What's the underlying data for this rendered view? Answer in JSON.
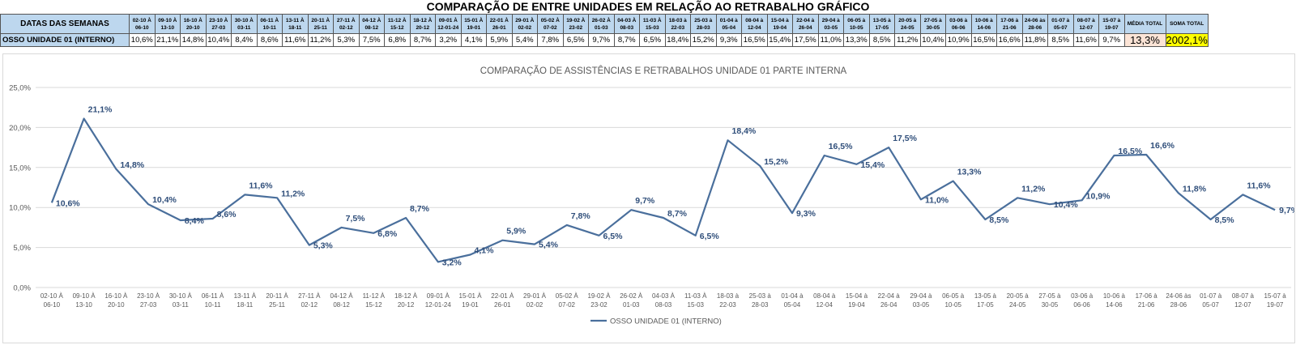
{
  "page_title": "COMPARAÇÃO DE ENTRE UNIDADES EM RELAÇÃO AO RETRABALHO GRÁFICO",
  "table": {
    "header_label": "DATAS DAS SEMANAS",
    "row_label": "OSSO UNIDADE 01 (INTERNO)",
    "weeks": [
      "02-10 À 06-10",
      "09-10 À 13-10",
      "16-10 À 20-10",
      "23-10 À 27-03",
      "30-10 À 03-11",
      "06-11 À 10-11",
      "13-11 À 18-11",
      "20-11 À 25-11",
      "27-11 À 02-12",
      "04-12 À 08-12",
      "11-12 À 15-12",
      "18-12 À 20-12",
      "09-01 À 12-01-24",
      "15-01 À 19-01",
      "22-01 À 26-01",
      "29-01 À 02-02",
      "05-02 À 07-02",
      "19-02 À 23-02",
      "26-02 À 01-03",
      "04-03 À 08-03",
      "11-03 À 15-03",
      "18-03 à 22-03",
      "25-03 à 28-03",
      "01-04 à 05-04",
      "08-04 à 12-04",
      "15-04 à 19-04",
      "22-04 à 26-04",
      "29-04 à 03-05",
      "06-05 à 10-05",
      "13-05 à 17-05",
      "20-05 à 24-05",
      "27-05 à 30-05",
      "03-06 à 06-06",
      "10-06 à 14-06",
      "17-06 à 21-06",
      "24-06 às 28-06",
      "01-07 à 05-07",
      "08-07 à 12-07",
      "15-07 à 19-07"
    ],
    "values": [
      "10,6%",
      "21,1%",
      "14,8%",
      "10,4%",
      "8,4%",
      "8,6%",
      "11,6%",
      "11,2%",
      "5,3%",
      "7,5%",
      "6,8%",
      "8,7%",
      "3,2%",
      "4,1%",
      "5,9%",
      "5,4%",
      "7,8%",
      "6,5%",
      "9,7%",
      "8,7%",
      "6,5%",
      "18,4%",
      "15,2%",
      "9,3%",
      "16,5%",
      "15,4%",
      "17,5%",
      "11,0%",
      "13,3%",
      "8,5%",
      "11,2%",
      "10,4%",
      "10,9%",
      "16,5%",
      "16,6%",
      "11,8%",
      "8,5%",
      "11,6%",
      "9,7%"
    ],
    "media_label": "MÉDIA TOTAL",
    "media_value": "13,3%",
    "soma_label": "SOMA TOTAL",
    "soma_value": "2002,1%"
  },
  "chart_data": {
    "type": "line",
    "title": "COMPARAÇÃO DE ASSISTÊNCIAS E RETRABALHOS UNIDADE 01 PARTE INTERNA",
    "categories": [
      [
        "02-10 À",
        "06-10"
      ],
      [
        "09-10 À",
        "13-10"
      ],
      [
        "16-10 À",
        "20-10"
      ],
      [
        "23-10 À",
        "27-03"
      ],
      [
        "30-10 À",
        "03-11"
      ],
      [
        "06-11 À",
        "10-11"
      ],
      [
        "13-11 À",
        "18-11"
      ],
      [
        "20-11 À",
        "25-11"
      ],
      [
        "27-11 À",
        "02-12"
      ],
      [
        "04-12 À",
        "08-12"
      ],
      [
        "11-12 À",
        "15-12"
      ],
      [
        "18-12 À",
        "20-12"
      ],
      [
        "09-01 À",
        "12-01-24"
      ],
      [
        "15-01 À",
        "19-01"
      ],
      [
        "22-01 À",
        "26-01"
      ],
      [
        "29-01 À",
        "02-02"
      ],
      [
        "05-02 À",
        "07-02"
      ],
      [
        "19-02 À",
        "23-02"
      ],
      [
        "26-02 À",
        "01-03"
      ],
      [
        "04-03 À",
        "08-03"
      ],
      [
        "11-03 À",
        "15-03"
      ],
      [
        "18-03 à",
        "22-03"
      ],
      [
        "25-03 à",
        "28-03"
      ],
      [
        "01-04 à",
        "05-04"
      ],
      [
        "08-04 à",
        "12-04"
      ],
      [
        "15-04 à",
        "19-04"
      ],
      [
        "22-04 à",
        "26-04"
      ],
      [
        "29-04 à",
        "03-05"
      ],
      [
        "06-05 à",
        "10-05"
      ],
      [
        "13-05 à",
        "17-05"
      ],
      [
        "20-05 à",
        "24-05"
      ],
      [
        "27-05 à",
        "30-05"
      ],
      [
        "03-06 à",
        "06-06"
      ],
      [
        "10-06 à",
        "14-06"
      ],
      [
        "17-06 à",
        "21-06"
      ],
      [
        "24-06 às",
        "28-06"
      ],
      [
        "01-07 à",
        "05-07"
      ],
      [
        "08-07 à",
        "12-07"
      ],
      [
        "15-07 à",
        "19-07"
      ]
    ],
    "series": [
      {
        "name": "OSSO UNIDADE 01 (INTERNO)",
        "color": "#4a6f9c",
        "values": [
          10.6,
          21.1,
          14.8,
          10.4,
          8.4,
          8.6,
          11.6,
          11.2,
          5.3,
          7.5,
          6.8,
          8.7,
          3.2,
          4.1,
          5.9,
          5.4,
          7.8,
          6.5,
          9.7,
          8.7,
          6.5,
          18.4,
          15.2,
          9.3,
          16.5,
          15.4,
          17.5,
          11.0,
          13.3,
          8.5,
          11.2,
          10.4,
          10.9,
          16.5,
          16.6,
          11.8,
          8.5,
          11.6,
          9.7
        ],
        "labels": [
          "10,6%",
          "21,1%",
          "14,8%",
          "10,4%",
          "8,4%",
          "8,6%",
          "11,6%",
          "11,2%",
          "5,3%",
          "7,5%",
          "6,8%",
          "8,7%",
          "3,2%",
          "4,1%",
          "5,9%",
          "5,4%",
          "7,8%",
          "6,5%",
          "9,7%",
          "8,7%",
          "6,5%",
          "18,4%",
          "15,2%",
          "9,3%",
          "16,5%",
          "15,4%",
          "17,5%",
          "11,0%",
          "13,3%",
          "8,5%",
          "11,2%",
          "10,4%",
          "10,9%",
          "16,5%",
          "16,6%",
          "11,8%",
          "8,5%",
          "11,6%",
          "9,7%"
        ]
      }
    ],
    "y_ticks": [
      "0,0%",
      "5,0%",
      "10,0%",
      "15,0%",
      "20,0%",
      "25,0%"
    ],
    "ylim": [
      0,
      25
    ],
    "grid": true,
    "legend": "bottom",
    "label_color": "#2f4e7a"
  }
}
